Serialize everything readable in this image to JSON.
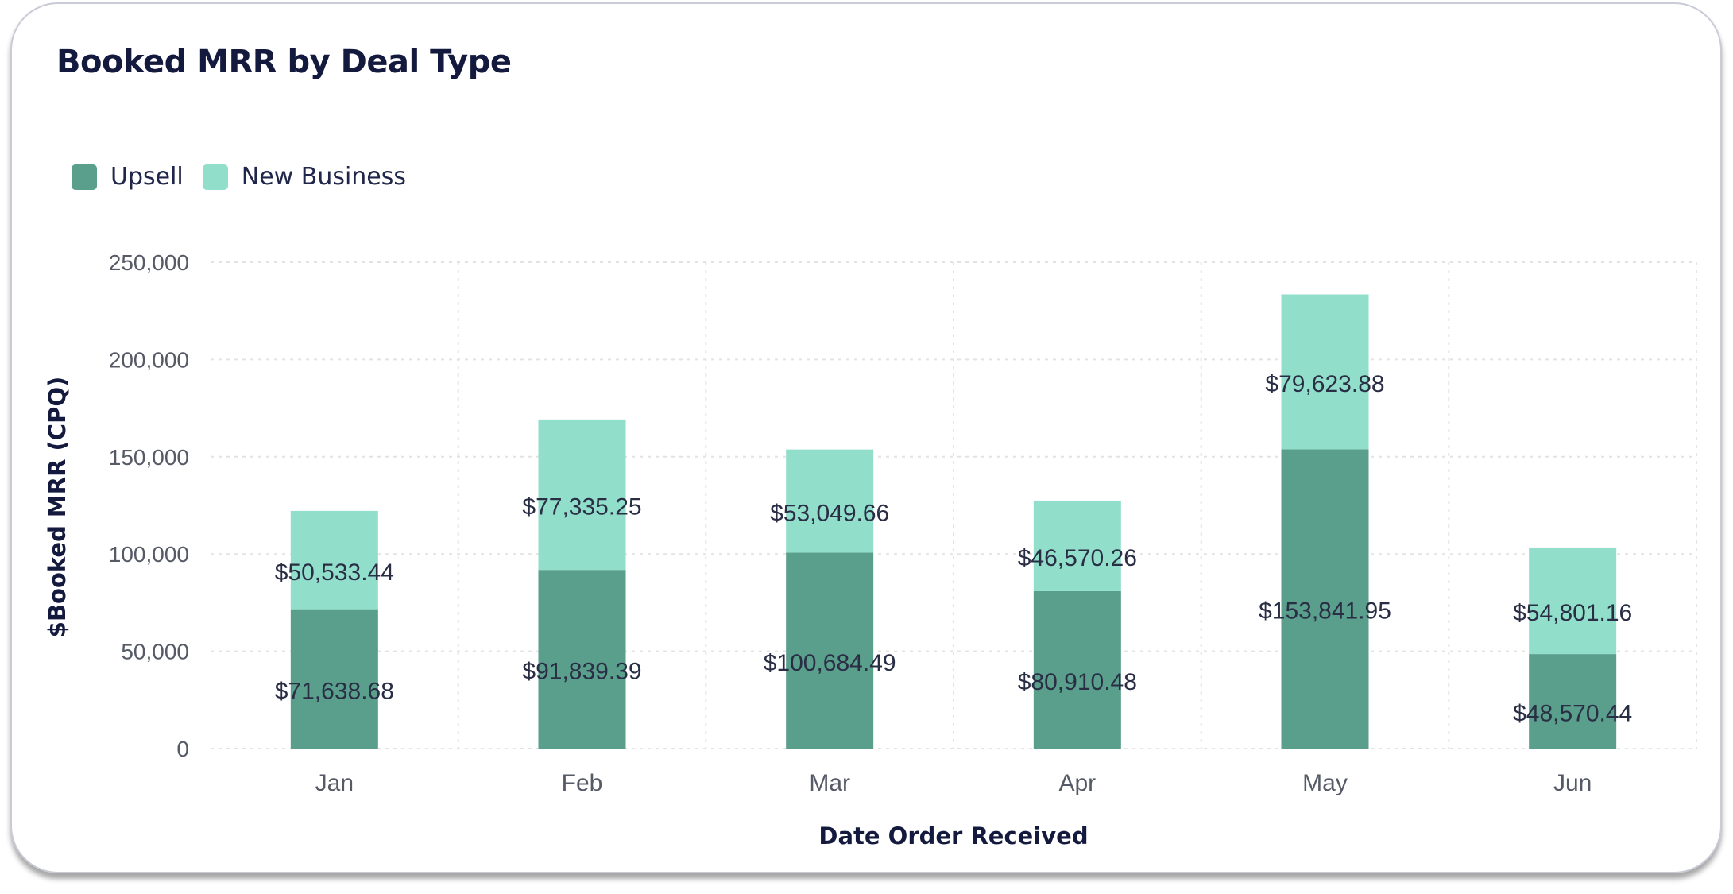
{
  "card": {
    "title": "Booked MRR by Deal Type"
  },
  "colors": {
    "upsell": "#5a9e8c",
    "new_business": "#91decb",
    "grid": "#e3e3e3",
    "title": "#141a3e"
  },
  "chart_data": {
    "type": "bar",
    "stacked": true,
    "title": "Booked MRR by Deal Type",
    "xlabel": "Date Order Received",
    "ylabel": "$Booked MRR (CPQ)",
    "categories": [
      "Jan",
      "Feb",
      "Mar",
      "Apr",
      "May",
      "Jun"
    ],
    "ylim": [
      0,
      250000
    ],
    "yticks": [
      0,
      50000,
      100000,
      150000,
      200000,
      250000
    ],
    "ytick_labels": [
      "0",
      "50,000",
      "100,000",
      "150,000",
      "200,000",
      "250,000"
    ],
    "grid": true,
    "legend_position": "top-left",
    "series": [
      {
        "name": "Upsell",
        "color": "#5a9e8c",
        "values": [
          71638.68,
          91839.39,
          100684.49,
          80910.48,
          153841.95,
          48570.44
        ],
        "labels": [
          "$71,638.68",
          "$91,839.39",
          "$100,684.49",
          "$80,910.48",
          "$153,841.95",
          "$48,570.44"
        ]
      },
      {
        "name": "New Business",
        "color": "#91decb",
        "values": [
          50533.44,
          77335.25,
          53049.66,
          46570.26,
          79623.88,
          54801.16
        ],
        "labels": [
          "$50,533.44",
          "$77,335.25",
          "$53,049.66",
          "$46,570.26",
          "$79,623.88",
          "$54,801.16"
        ]
      }
    ]
  }
}
